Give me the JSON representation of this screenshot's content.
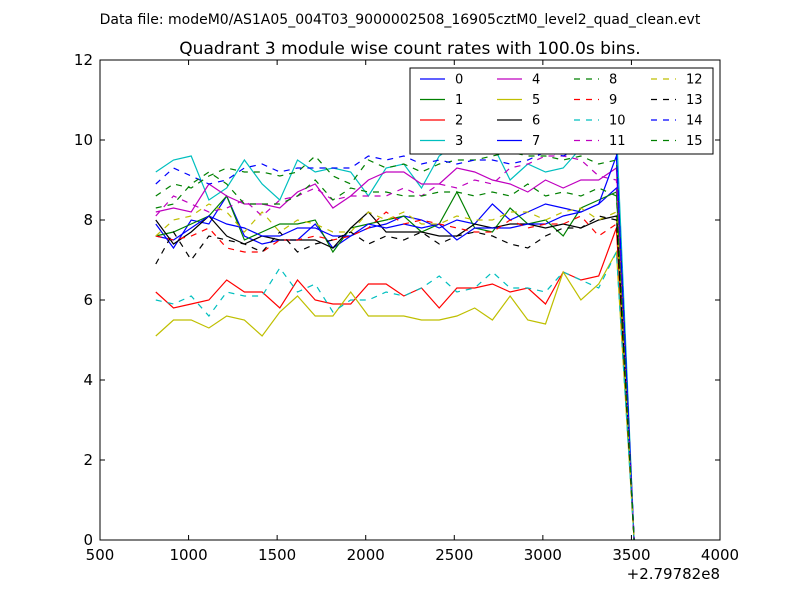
{
  "chart_data": {
    "type": "line",
    "suptitle": "Data file: modeM0/AS1A05_004T03_9000002508_16905cztM0_level2_quad_clean.evt",
    "title": "Quadrant 3 module wise count rates with 100.0s bins.",
    "xlabel": "",
    "ylabel": "",
    "x_offset_label": "+2.79782e8",
    "xlim": [
      500,
      4000
    ],
    "ylim": [
      0,
      12
    ],
    "xticks": [
      500,
      1000,
      1500,
      2000,
      2500,
      3000,
      3500,
      4000
    ],
    "yticks": [
      0,
      2,
      4,
      6,
      8,
      10,
      12
    ],
    "grid": false,
    "legend": {
      "placement": "top-right",
      "columns": 4
    },
    "x": [
      815,
      915,
      1015,
      1115,
      1215,
      1315,
      1415,
      1515,
      1615,
      1715,
      1815,
      1915,
      2015,
      2115,
      2215,
      2315,
      2415,
      2515,
      2615,
      2715,
      2815,
      2915,
      3015,
      3115,
      3215,
      3315,
      3415,
      3515
    ],
    "series": [
      {
        "name": "0",
        "color": "#0000ff",
        "dash": false,
        "values": [
          7.9,
          7.3,
          8.0,
          7.9,
          8.6,
          7.6,
          7.4,
          7.5,
          7.5,
          7.9,
          7.3,
          7.6,
          7.8,
          7.9,
          8.1,
          8.0,
          7.8,
          8.0,
          7.9,
          8.4,
          8.0,
          8.2,
          8.4,
          8.3,
          8.2,
          8.4,
          8.8,
          0.0
        ]
      },
      {
        "name": "1",
        "color": "#008000",
        "dash": false,
        "values": [
          7.6,
          7.7,
          7.9,
          8.1,
          8.6,
          7.5,
          7.7,
          7.9,
          7.9,
          8.0,
          7.2,
          7.8,
          7.9,
          8.0,
          8.1,
          7.7,
          7.9,
          8.7,
          7.8,
          7.7,
          8.3,
          7.9,
          8.0,
          7.6,
          8.3,
          8.5,
          8.7,
          0.0
        ]
      },
      {
        "name": "2",
        "color": "#ff0000",
        "dash": false,
        "values": [
          6.2,
          5.8,
          5.9,
          6.0,
          6.5,
          6.2,
          6.2,
          5.8,
          6.5,
          6.0,
          5.9,
          5.9,
          6.4,
          6.4,
          6.1,
          6.3,
          5.8,
          6.3,
          6.3,
          6.4,
          6.2,
          6.3,
          5.9,
          6.7,
          6.5,
          6.6,
          7.8,
          0.0
        ]
      },
      {
        "name": "3",
        "color": "#00bfbf",
        "dash": false,
        "values": [
          9.2,
          9.5,
          9.6,
          8.5,
          8.8,
          9.5,
          8.9,
          8.5,
          9.5,
          9.2,
          9.3,
          9.2,
          8.6,
          9.3,
          9.4,
          8.8,
          9.6,
          9.9,
          9.9,
          9.9,
          9.0,
          9.4,
          9.2,
          9.3,
          9.8,
          9.9,
          10.3,
          0.0
        ]
      },
      {
        "name": "4",
        "color": "#bf00bf",
        "dash": false,
        "values": [
          8.2,
          8.3,
          8.2,
          8.9,
          8.6,
          8.4,
          8.4,
          8.3,
          8.7,
          8.9,
          8.3,
          8.6,
          9.0,
          9.2,
          9.2,
          8.9,
          8.9,
          9.3,
          9.2,
          9.0,
          8.9,
          8.7,
          9.0,
          8.8,
          9.0,
          9.0,
          9.3,
          0.0
        ]
      },
      {
        "name": "5",
        "color": "#bfbf00",
        "dash": false,
        "values": [
          5.1,
          5.5,
          5.5,
          5.3,
          5.6,
          5.5,
          5.1,
          5.7,
          6.1,
          5.6,
          5.6,
          6.2,
          5.6,
          5.6,
          5.6,
          5.5,
          5.5,
          5.6,
          5.8,
          5.5,
          6.1,
          5.5,
          5.4,
          6.7,
          6.0,
          6.4,
          7.2,
          0.0
        ]
      },
      {
        "name": "6",
        "color": "#000000",
        "dash": false,
        "values": [
          8.0,
          7.4,
          7.7,
          8.1,
          7.6,
          7.4,
          7.6,
          7.5,
          7.5,
          7.5,
          7.3,
          7.8,
          8.2,
          7.7,
          7.7,
          7.7,
          7.6,
          7.6,
          7.9,
          7.8,
          7.9,
          7.9,
          7.8,
          7.9,
          7.8,
          8.0,
          8.1,
          0.0
        ]
      },
      {
        "name": "7",
        "color": "#0000ff",
        "dash": false,
        "values": [
          7.6,
          7.5,
          7.8,
          8.1,
          7.9,
          7.8,
          7.6,
          7.6,
          7.8,
          7.8,
          7.6,
          7.6,
          7.9,
          7.8,
          7.9,
          7.8,
          7.9,
          7.5,
          7.8,
          7.8,
          7.8,
          7.9,
          7.9,
          8.1,
          8.2,
          8.4,
          9.6,
          0.0
        ]
      },
      {
        "name": "8",
        "color": "#008000",
        "dash": true,
        "values": [
          8.6,
          8.9,
          8.8,
          9.1,
          9.3,
          9.2,
          9.2,
          9.1,
          9.2,
          9.6,
          9.1,
          8.9,
          9.5,
          9.3,
          9.4,
          9.2,
          9.4,
          9.5,
          9.5,
          9.6,
          9.7,
          9.6,
          9.6,
          9.5,
          9.6,
          9.4,
          9.5,
          0.0
        ]
      },
      {
        "name": "9",
        "color": "#ff0000",
        "dash": true,
        "values": [
          7.6,
          7.5,
          7.6,
          7.8,
          7.3,
          7.2,
          7.2,
          7.5,
          7.5,
          7.6,
          7.5,
          7.6,
          7.8,
          8.2,
          7.9,
          8.0,
          7.9,
          7.8,
          7.7,
          7.7,
          8.0,
          7.8,
          7.9,
          7.9,
          8.1,
          7.6,
          7.9,
          0.0
        ]
      },
      {
        "name": "10",
        "color": "#00bfbf",
        "dash": true,
        "values": [
          6.0,
          5.9,
          6.1,
          5.6,
          6.2,
          6.1,
          6.1,
          6.8,
          6.2,
          6.4,
          5.7,
          6.0,
          6.0,
          6.2,
          6.1,
          6.3,
          6.6,
          6.2,
          6.3,
          6.7,
          6.3,
          6.3,
          6.2,
          6.7,
          6.5,
          6.3,
          7.2,
          0.0
        ]
      },
      {
        "name": "11",
        "color": "#bf00bf",
        "dash": true,
        "values": [
          8.1,
          8.6,
          8.4,
          8.2,
          8.3,
          8.5,
          8.1,
          8.5,
          8.6,
          8.8,
          8.5,
          8.6,
          8.6,
          8.6,
          8.8,
          8.6,
          8.9,
          8.8,
          9.0,
          8.9,
          9.3,
          9.4,
          9.6,
          9.6,
          9.5,
          9.1,
          9.0,
          0.0
        ]
      },
      {
        "name": "12",
        "color": "#bfbf00",
        "dash": true,
        "values": [
          7.6,
          8.0,
          8.1,
          8.4,
          8.2,
          7.7,
          8.2,
          7.7,
          8.0,
          7.9,
          7.7,
          7.7,
          8.2,
          8.0,
          8.2,
          7.9,
          7.9,
          8.1,
          8.0,
          8.0,
          8.2,
          8.2,
          8.0,
          8.2,
          8.3,
          8.0,
          8.2,
          0.0
        ]
      },
      {
        "name": "13",
        "color": "#000000",
        "dash": true,
        "values": [
          6.9,
          7.7,
          7.0,
          7.6,
          7.5,
          7.4,
          7.2,
          7.7,
          7.2,
          7.4,
          7.5,
          7.7,
          7.4,
          7.6,
          7.5,
          7.7,
          7.4,
          7.6,
          7.7,
          7.6,
          7.4,
          7.3,
          7.6,
          7.8,
          7.8,
          8.1,
          8.0,
          0.0
        ]
      },
      {
        "name": "14",
        "color": "#0000ff",
        "dash": true,
        "values": [
          8.9,
          9.3,
          9.1,
          8.9,
          9.0,
          9.3,
          9.4,
          9.2,
          9.3,
          9.3,
          9.3,
          9.3,
          9.6,
          9.5,
          9.6,
          9.4,
          9.5,
          9.4,
          9.5,
          9.5,
          9.4,
          9.5,
          9.7,
          9.6,
          9.8,
          9.7,
          9.7,
          0.0
        ]
      },
      {
        "name": "15",
        "color": "#008000",
        "dash": true,
        "values": [
          8.3,
          8.4,
          8.9,
          9.2,
          8.9,
          8.4,
          8.4,
          8.4,
          8.6,
          9.0,
          8.5,
          8.8,
          8.7,
          8.7,
          8.6,
          8.6,
          8.7,
          8.7,
          8.6,
          8.7,
          8.6,
          8.9,
          8.6,
          8.7,
          8.6,
          8.8,
          8.6,
          0.0
        ]
      }
    ]
  }
}
